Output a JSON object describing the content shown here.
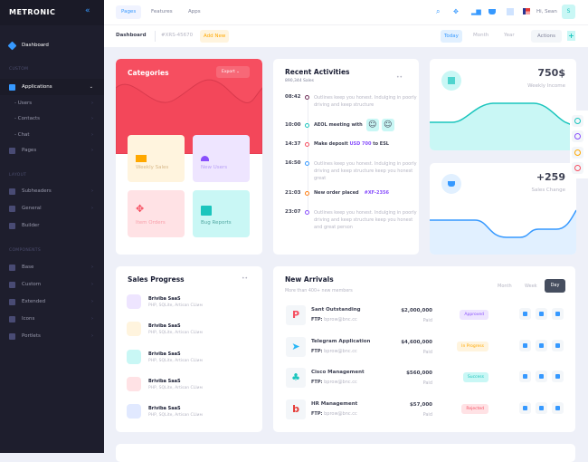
{
  "sidebar": {
    "brand": "METRONIC",
    "dashboard": "Dashboard",
    "sections": [
      "CUSTOM",
      "LAYOUT",
      "COMPONENTS"
    ],
    "custom": [
      {
        "label": "Applications"
      },
      {
        "label": "- Users"
      },
      {
        "label": "- Contacts"
      },
      {
        "label": "- Chat"
      },
      {
        "label": "Pages"
      }
    ],
    "layout": [
      {
        "label": "Subheaders"
      },
      {
        "label": "General"
      },
      {
        "label": "Builder"
      }
    ],
    "components": [
      {
        "label": "Base"
      },
      {
        "label": "Custom"
      },
      {
        "label": "Extended"
      },
      {
        "label": "Icons"
      },
      {
        "label": "Portlets"
      }
    ]
  },
  "topbar": {
    "nav": [
      "Pages",
      "Features",
      "Apps"
    ],
    "greeting": "Hi, Sean",
    "avatar": "S"
  },
  "subheader": {
    "title": "Dashboard",
    "code": "#XRS-45670",
    "add_new": "Add New",
    "periods": [
      "Today",
      "Month",
      "Year"
    ],
    "actions": "Actions",
    "plus": "+"
  },
  "categories": {
    "title": "Categories",
    "export": "Export",
    "tiles": [
      {
        "label": "Weekly Sales"
      },
      {
        "label": "New Users"
      },
      {
        "label": "Item Orders"
      },
      {
        "label": "Bug Reports"
      }
    ],
    "colors": {
      "header": "#f64e60"
    }
  },
  "activities": {
    "title": "Recent Activities",
    "subtitle": "890,344 Sales",
    "items": [
      {
        "time": "08:42",
        "text": "Outlines keep you honest. Indulging in poorly driving and keep structure",
        "color": "#6e2d57"
      },
      {
        "time": "10:00",
        "text": "AEOL meeting with",
        "color": "#1bc5bd"
      },
      {
        "time": "14:37",
        "text": "Make deposit ",
        "highlight": "USD 700",
        "after": " to ESL",
        "color": "#f64e60"
      },
      {
        "time": "16:50",
        "text": "Outlines keep you honest. Indulging in poorly driving and keep structure keep you honest great",
        "color": "#3699ff"
      },
      {
        "time": "21:03",
        "text": "New order placed",
        "highlight": "#XF-2356",
        "color": "#fd7e14"
      },
      {
        "time": "23:07",
        "text": "Outlines keep you honest. Indulging in poorly driving and keep structure keep you honest and great person",
        "color": "#8950fc"
      }
    ]
  },
  "stats": [
    {
      "value": "750$",
      "label": "Weekly Income",
      "color": "#1bc5bd"
    },
    {
      "value": "+259",
      "label": "Sales Change",
      "color": "#3699ff"
    }
  ],
  "sales_progress": {
    "title": "Sales Progress",
    "items": [
      {
        "name": "Briviba SaaS",
        "desc": "PHP, SQLite, Artisan CLIим",
        "color": "#eee5ff"
      },
      {
        "name": "Briviba SaaS",
        "desc": "PHP, SQLite, Artisan CLIим",
        "color": "#fff4de"
      },
      {
        "name": "Briviba SaaS",
        "desc": "PHP, SQLite, Artisan CLIим",
        "color": "#c9f7f5"
      },
      {
        "name": "Briviba SaaS",
        "desc": "PHP, SQLite, Artisan CLIим",
        "color": "#ffe2e5"
      },
      {
        "name": "Briviba SaaS",
        "desc": "PHP, SQLite, Artisan CLIим",
        "color": "#e1e9ff"
      }
    ]
  },
  "new_arrivals": {
    "title": "New Arrivals",
    "subtitle": "More than 400+ new members",
    "tabs": [
      "Month",
      "Week",
      "Day"
    ],
    "active_tab": "Day",
    "rows": [
      {
        "name": "Sant Outstanding",
        "ftp_label": "FTP:",
        "ftp": "bprow@bnc.cc",
        "amount": "$2,000,000",
        "paid": "Paid",
        "status": "Approved",
        "logo": "P",
        "logo_color": "#f64e60"
      },
      {
        "name": "Telegram Application",
        "ftp_label": "FTP:",
        "ftp": "bprow@bnc.cc",
        "amount": "$4,600,000",
        "paid": "Paid",
        "status": "In Progress",
        "logo": "➤",
        "logo_color": "#29b6f6"
      },
      {
        "name": "Cisco Management",
        "ftp_label": "FTP:",
        "ftp": "bprow@bnc.cc",
        "amount": "$560,000",
        "paid": "Paid",
        "status": "Success",
        "logo": "♣",
        "logo_color": "#1bc5bd"
      },
      {
        "name": "HR Management",
        "ftp_label": "FTP:",
        "ftp": "bprow@bnc.cc",
        "amount": "$57,000",
        "paid": "Paid",
        "status": "Rejected",
        "logo": "b",
        "logo_color": "#e53935"
      }
    ]
  }
}
